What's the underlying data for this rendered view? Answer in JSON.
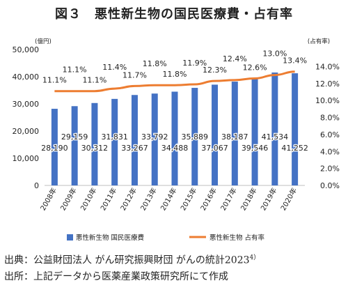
{
  "title": "図３　悪性新生物の国民医療費・占有率",
  "source_line": "出典：公益財団法人 がん研究振興財団 がんの統計2023",
  "source_ref": "4）",
  "origin_line": "出所：上記データから医薬産業政策研究所にて作成",
  "chart_data": {
    "type": "bar+line",
    "categories": [
      "2008年",
      "2009年",
      "2010年",
      "2011年",
      "2012年",
      "2013年",
      "2014年",
      "2015年",
      "2016年",
      "2017年",
      "2018年",
      "2019年",
      "2020年"
    ],
    "series": [
      {
        "name": "悪性新生物 国民医療費",
        "type": "bar",
        "axis": "left",
        "color": "#4472c4",
        "values": [
          28190,
          29159,
          30312,
          31831,
          33267,
          33792,
          34488,
          35889,
          37067,
          38187,
          39546,
          41534,
          41252
        ],
        "labels": [
          "28,190",
          "29,159",
          "30,312",
          "31,831",
          "33,267",
          "33,792",
          "34,488",
          "35,889",
          "37,067",
          "38,187",
          "39,546",
          "41,534",
          "41,252"
        ]
      },
      {
        "name": "悪性新生物 占有率",
        "type": "line",
        "axis": "right",
        "color": "#ed7d31",
        "values": [
          11.1,
          11.1,
          11.1,
          11.4,
          11.7,
          11.8,
          11.8,
          11.9,
          12.3,
          12.4,
          12.6,
          13.0,
          13.4
        ],
        "labels": [
          "11.1%",
          "11.1%",
          "11.1%",
          "11.4%",
          "11.7%",
          "11.8%",
          "11.8%",
          "11.9%",
          "12.3%",
          "12.4%",
          "12.6%",
          "13.0%",
          "13.4%"
        ]
      }
    ],
    "y_left": {
      "unit_label": "(億円)",
      "range": [
        0,
        50000
      ],
      "ticks": [
        "0",
        "10,000",
        "20,000",
        "30,000",
        "40,000",
        "50,000"
      ]
    },
    "y_right": {
      "unit_label": "(占有率)",
      "range": [
        0,
        16
      ],
      "ticks": [
        "0.0%",
        "2.0%",
        "4.0%",
        "6.0%",
        "8.0%",
        "10.0%",
        "12.0%",
        "14.0%"
      ]
    },
    "legend": {
      "placement": "bottom"
    },
    "grid": false
  }
}
